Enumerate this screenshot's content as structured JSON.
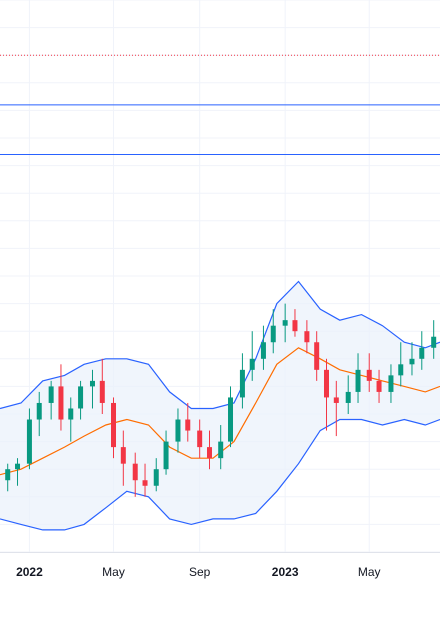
{
  "colors": {
    "background": "#ffffff",
    "grid": "#f0f3fa",
    "up": "#089981",
    "down": "#f23645",
    "band_line": "#2962ff",
    "band_fill": "#eaf1fb",
    "basis": "#ff6d00",
    "hline": "#2962ff",
    "dotted_line": "#f23645"
  },
  "chart_data": {
    "type": "candlestick",
    "title": "",
    "xlabel": "",
    "ylabel": "",
    "ylim": [
      0,
      100
    ],
    "grid": true,
    "x_range": [
      "2021-11-20",
      "2023-08-10"
    ],
    "x_ticks": [
      {
        "date": "2022-01-01",
        "label": "2022",
        "year": true
      },
      {
        "date": "2022-05-01",
        "label": "May",
        "year": false
      },
      {
        "date": "2022-09-01",
        "label": "Sep",
        "year": false
      },
      {
        "date": "2023-01-01",
        "label": "2023",
        "year": true
      },
      {
        "date": "2023-05-01",
        "label": "May",
        "year": false
      }
    ],
    "horizontal_lines": [
      {
        "value": 90,
        "style": "dotted",
        "color": "#f23645"
      },
      {
        "value": 81,
        "style": "solid",
        "color": "#2962ff"
      },
      {
        "value": 72,
        "style": "solid",
        "color": "#2962ff"
      }
    ],
    "band": {
      "dates": [
        "2021-11-20",
        "2021-12-20",
        "2022-01-20",
        "2022-02-20",
        "2022-03-20",
        "2022-04-20",
        "2022-05-20",
        "2022-06-20",
        "2022-07-20",
        "2022-08-20",
        "2022-09-20",
        "2022-10-20",
        "2022-11-20",
        "2022-12-20",
        "2023-01-20",
        "2023-02-20",
        "2023-03-20",
        "2023-04-20",
        "2023-05-20",
        "2023-06-20",
        "2023-07-20",
        "2023-08-10"
      ],
      "upper": [
        26,
        27,
        31,
        32,
        34,
        35,
        35,
        34,
        29,
        26,
        26,
        27,
        35,
        45,
        49,
        44,
        42,
        43,
        41,
        38,
        37,
        38
      ],
      "basis": [
        14,
        15,
        17,
        19,
        21,
        23,
        24,
        23,
        19,
        17,
        17,
        20,
        27,
        34,
        37,
        35,
        33,
        32,
        31,
        30,
        29,
        30
      ],
      "lower": [
        6,
        5,
        4,
        4,
        5,
        8,
        11,
        10,
        6,
        5,
        6,
        6,
        7,
        11,
        16,
        22,
        24,
        24,
        23,
        24,
        23,
        24
      ]
    },
    "series": [
      {
        "name": "",
        "dates": [
          "2021-12-01",
          "2021-12-15",
          "2022-01-01",
          "2022-01-15",
          "2022-02-01",
          "2022-02-15",
          "2022-03-01",
          "2022-03-15",
          "2022-04-01",
          "2022-04-15",
          "2022-05-01",
          "2022-05-15",
          "2022-06-01",
          "2022-06-15",
          "2022-07-01",
          "2022-07-15",
          "2022-08-01",
          "2022-08-15",
          "2022-09-01",
          "2022-09-15",
          "2022-10-01",
          "2022-10-15",
          "2022-11-01",
          "2022-11-15",
          "2022-12-01",
          "2022-12-15",
          "2023-01-01",
          "2023-01-15",
          "2023-02-01",
          "2023-02-15",
          "2023-03-01",
          "2023-03-15",
          "2023-04-01",
          "2023-04-15",
          "2023-05-01",
          "2023-05-15",
          "2023-06-01",
          "2023-06-15",
          "2023-07-01",
          "2023-07-15",
          "2023-08-01"
        ],
        "open": [
          13,
          15,
          16,
          24,
          27,
          30,
          24,
          26,
          30,
          31,
          27,
          19,
          16,
          13,
          12,
          15,
          20,
          24,
          22,
          19,
          17,
          20,
          28,
          33,
          35,
          38,
          41,
          42,
          40,
          38,
          33,
          28,
          27,
          29,
          33,
          31,
          29,
          32,
          34,
          35,
          37
        ],
        "high": [
          16,
          17,
          26,
          29,
          31,
          34,
          28,
          31,
          33,
          35,
          28,
          22,
          18,
          16,
          17,
          22,
          26,
          27,
          24,
          22,
          23,
          30,
          36,
          40,
          41,
          44,
          45,
          44,
          42,
          40,
          35,
          31,
          32,
          36,
          36,
          33,
          34,
          38,
          38,
          40,
          42
        ],
        "low": [
          11,
          12,
          15,
          21,
          24,
          22,
          20,
          24,
          26,
          25,
          17,
          12,
          10,
          10,
          11,
          14,
          18,
          20,
          17,
          15,
          15,
          19,
          26,
          31,
          33,
          36,
          38,
          39,
          36,
          31,
          22,
          21,
          25,
          27,
          29,
          27,
          27,
          30,
          32,
          33,
          35
        ],
        "close": [
          15,
          16,
          24,
          27,
          30,
          24,
          26,
          30,
          31,
          27,
          19,
          16,
          13,
          12,
          15,
          20,
          24,
          22,
          19,
          17,
          20,
          28,
          33,
          35,
          38,
          41,
          42,
          40,
          38,
          33,
          28,
          27,
          29,
          33,
          31,
          29,
          32,
          34,
          35,
          37,
          39
        ]
      }
    ]
  }
}
